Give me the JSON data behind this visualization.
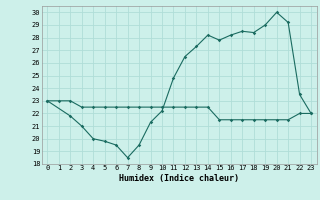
{
  "xlabel": "Humidex (Indice chaleur)",
  "ylabel": "",
  "bg_color": "#cdf0ea",
  "grid_color": "#b0ddd8",
  "line_color": "#1a6b60",
  "xlim": [
    -0.5,
    23.5
  ],
  "ylim": [
    18,
    30.5
  ],
  "x_ticks": [
    0,
    1,
    2,
    3,
    4,
    5,
    6,
    7,
    8,
    9,
    10,
    11,
    12,
    13,
    14,
    15,
    16,
    17,
    18,
    19,
    20,
    21,
    22,
    23
  ],
  "y_ticks": [
    18,
    19,
    20,
    21,
    22,
    23,
    24,
    25,
    26,
    27,
    28,
    29,
    30
  ],
  "line1_x": [
    0,
    1,
    2,
    3,
    4,
    5,
    6,
    7,
    8,
    9,
    10,
    11,
    12,
    13,
    14,
    15,
    16,
    17,
    18,
    19,
    20,
    21,
    22,
    23
  ],
  "line1_y": [
    23,
    23,
    23,
    22.5,
    22.5,
    22.5,
    22.5,
    22.5,
    22.5,
    22.5,
    22.5,
    22.5,
    22.5,
    22.5,
    22.5,
    21.5,
    21.5,
    21.5,
    21.5,
    21.5,
    21.5,
    21.5,
    22,
    22
  ],
  "line2_x": [
    0,
    2,
    3,
    4,
    5,
    6,
    7,
    8,
    9,
    10,
    11,
    12,
    13,
    14,
    15,
    16,
    17,
    18,
    19,
    20,
    21,
    22,
    23
  ],
  "line2_y": [
    23,
    21.8,
    21,
    20,
    19.8,
    19.5,
    18.5,
    19.5,
    21.3,
    22.2,
    24.8,
    26.5,
    27.3,
    28.2,
    27.8,
    28.2,
    28.5,
    28.4,
    29.0,
    30,
    29.2,
    23.5,
    22
  ]
}
